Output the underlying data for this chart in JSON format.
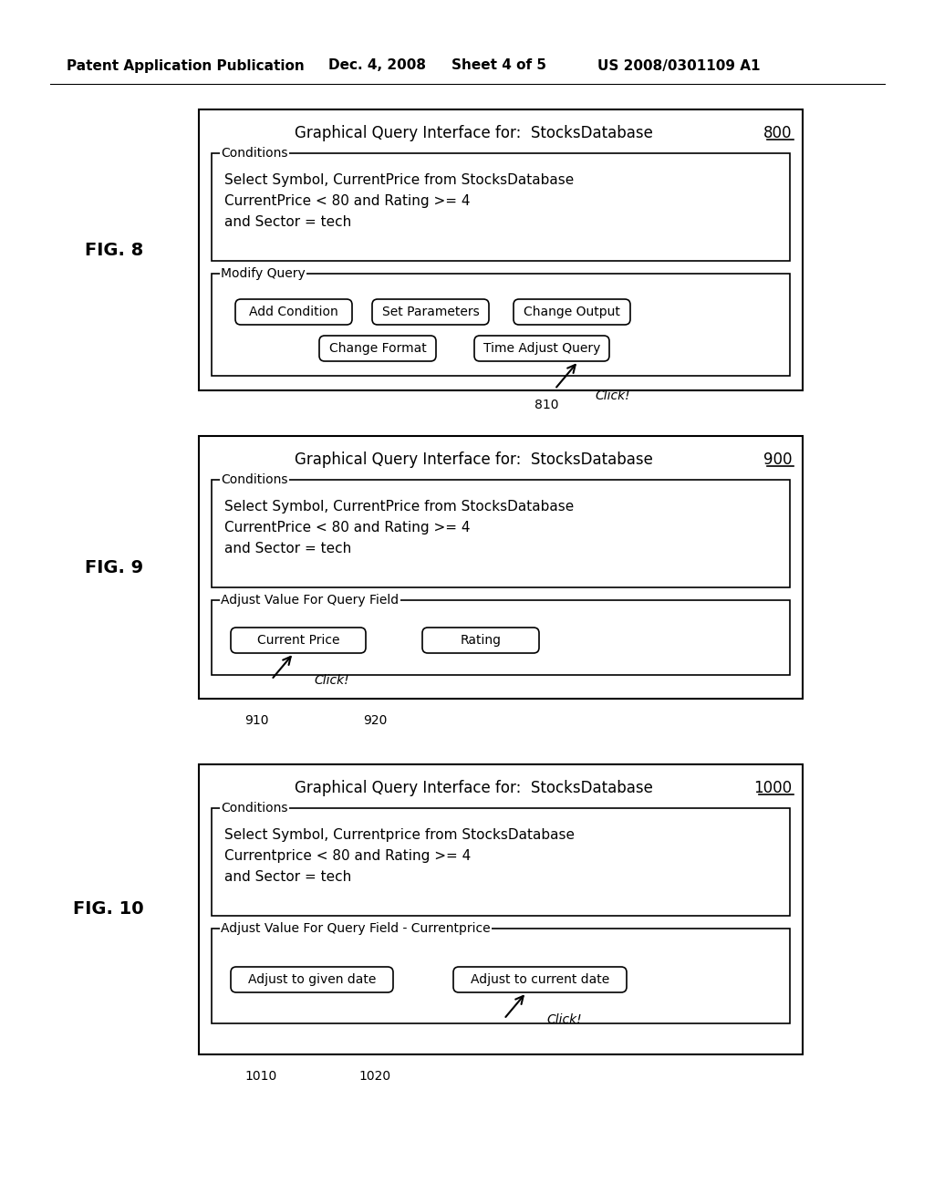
{
  "header_text": "Patent Application Publication",
  "header_date": "Dec. 4, 2008",
  "header_sheet": "Sheet 4 of 5",
  "header_patent": "US 2008/0301109 A1",
  "bg_color": "#ffffff",
  "fig8": {
    "label": "FIG. 8",
    "number": "800",
    "title": "Graphical Query Interface for:  StocksDatabase",
    "conditions_label": "Conditions",
    "conditions_text": "Select Symbol, CurrentPrice from StocksDatabase\nCurrentPrice < 80 and Rating >= 4\nand Sector = tech",
    "modify_label": "Modify Query",
    "buttons_row1": [
      "Add Condition",
      "Set Parameters",
      "Change Output"
    ],
    "buttons_row2": [
      "Change Format",
      "Time Adjust Query"
    ],
    "arrow_label": "810",
    "click_label": "Click!",
    "arrow_button": "Time Adjust Query"
  },
  "fig9": {
    "label": "FIG. 9",
    "number": "900",
    "title": "Graphical Query Interface for:  StocksDatabase",
    "conditions_label": "Conditions",
    "conditions_text": "Select Symbol, CurrentPrice from StocksDatabase\nCurrentPrice < 80 and Rating >= 4\nand Sector = tech",
    "adjust_label": "Adjust Value For Query Field",
    "buttons_row1": [
      "Current Price",
      "Rating"
    ],
    "arrow_label1": "910",
    "arrow_label2": "920",
    "click_label": "Click!",
    "arrow_button": "Current Price"
  },
  "fig10": {
    "label": "FIG. 10",
    "number": "1000",
    "title": "Graphical Query Interface for:  StocksDatabase",
    "conditions_label": "Conditions",
    "conditions_text": "Select Symbol, Currentprice from StocksDatabase\nCurrentprice < 80 and Rating >= 4\nand Sector = tech",
    "adjust_label": "Adjust Value For Query Field - Currentprice",
    "buttons_row1": [
      "Adjust to given date",
      "Adjust to current date"
    ],
    "arrow_label1": "1010",
    "arrow_label2": "1020",
    "click_label": "Click!",
    "arrow_button": "Adjust to current date"
  }
}
